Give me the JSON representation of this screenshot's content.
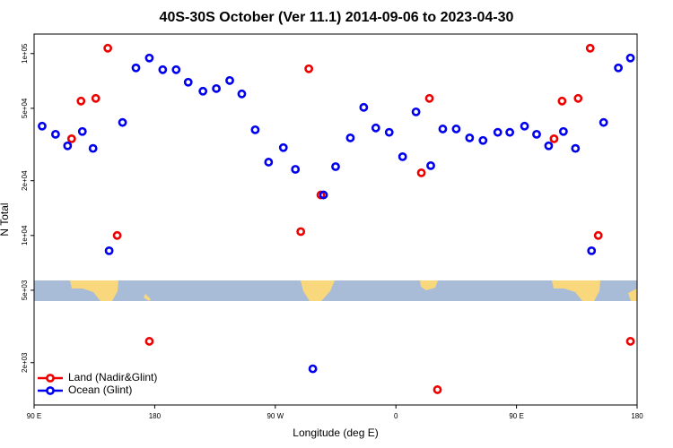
{
  "chart_data": {
    "type": "scatter",
    "title": "40S-30S October (Ver 11.1)   2014-09-06 to 2023-04-30",
    "xlabel": "Longitude (deg E)",
    "ylabel": "N Total",
    "xlim": [
      90,
      540
    ],
    "xticks": [
      {
        "value": 90,
        "label": "90 E"
      },
      {
        "value": 180,
        "label": "180"
      },
      {
        "value": 270,
        "label": "90 W"
      },
      {
        "value": 360,
        "label": "0"
      },
      {
        "value": 450,
        "label": "90 E"
      },
      {
        "value": 540,
        "label": "180"
      }
    ],
    "ylim": [
      1170,
      128000
    ],
    "log_y": true,
    "yticks": [
      {
        "value": 2000,
        "label": "2e+03"
      },
      {
        "value": 5000,
        "label": "5e+03"
      },
      {
        "value": 10000,
        "label": "1e+04"
      },
      {
        "value": 20000,
        "label": "2e+04"
      },
      {
        "value": 50000,
        "label": "5e+04"
      },
      {
        "value": 100000,
        "label": "1e+05"
      }
    ],
    "legend": "lower left",
    "series": [
      {
        "name": "Land (Nadir&Glint)",
        "color": "#ee0000",
        "x": [
          118,
          125,
          136,
          145,
          152,
          176,
          289,
          295,
          304,
          379,
          385,
          391,
          478,
          484,
          496,
          505,
          511,
          535
        ],
        "values": [
          34000,
          54800,
          56700,
          107000,
          10000,
          2620,
          10500,
          82500,
          16700,
          22100,
          56700,
          1420,
          34000,
          54800,
          56700,
          107000,
          10000,
          2620
        ]
      },
      {
        "name": "Ocean (Glint)",
        "color": "#0000ee",
        "x": [
          96,
          106,
          115,
          126,
          134,
          146,
          156,
          166,
          176,
          186,
          196,
          205,
          216,
          226,
          236,
          245,
          255,
          265,
          276,
          285,
          298,
          306,
          315,
          326,
          336,
          345,
          355,
          365,
          375,
          386,
          395,
          405,
          415,
          425,
          436,
          445,
          456,
          465,
          474,
          485,
          494,
          506,
          515,
          526,
          535
        ],
        "values": [
          39900,
          36000,
          31100,
          37300,
          30100,
          8240,
          41800,
          83400,
          94500,
          81500,
          81500,
          69600,
          62100,
          64200,
          71100,
          60000,
          38100,
          25300,
          30400,
          23100,
          1850,
          16700,
          23900,
          34400,
          50600,
          39000,
          36900,
          27100,
          47800,
          24200,
          38500,
          38500,
          34400,
          33300,
          36900,
          36900,
          39900,
          36000,
          31100,
          37300,
          30100,
          8240,
          41800,
          83400,
          94500
        ]
      }
    ]
  }
}
